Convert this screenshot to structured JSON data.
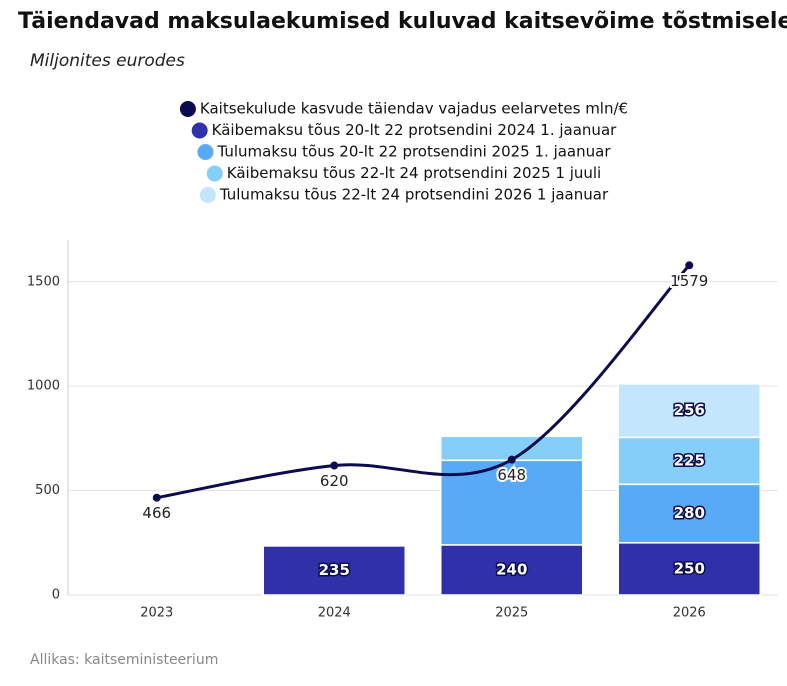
{
  "chart_data": {
    "type": "bar",
    "stacked": true,
    "title": "Täiendavad maksulaekumised kuluvad kaitsevõime tõstmisele",
    "subtitle": "Miljonites eurodes",
    "source": "Allikas: kaitseministeerium",
    "categories": [
      "2023",
      "2024",
      "2025",
      "2026"
    ],
    "ylim": [
      0,
      1700
    ],
    "yticks": [
      0,
      500,
      1000,
      1500
    ],
    "grid": true,
    "series": [
      {
        "name": "Kaitsekulude kasvude täiendav vajadus eelarvetes mln/€",
        "type": "line",
        "color": "#0b0b4f",
        "values": [
          466,
          620,
          648,
          1579
        ]
      },
      {
        "name": "Käibemaksu tõus 20-lt 22 protsendini 2024 1. jaanuar",
        "type": "bar",
        "color": "#3030a8",
        "values": [
          null,
          235,
          240,
          250
        ],
        "value_labels": [
          null,
          "235",
          "240",
          "250"
        ]
      },
      {
        "name": "Tulumaksu tõus 20-lt 22 protsendini 2025 1. jaanuar",
        "type": "bar",
        "color": "#58aaf7",
        "values": [
          null,
          null,
          405,
          280
        ],
        "value_labels": [
          null,
          null,
          null,
          "280"
        ]
      },
      {
        "name": "Käibemaksu tõus 22-lt  24 protsendini 2025 1 juuli",
        "type": "bar",
        "color": "#86cefa",
        "values": [
          null,
          null,
          115,
          225
        ],
        "value_labels": [
          null,
          null,
          null,
          "225"
        ]
      },
      {
        "name": "Tulumaksu tõus 22-lt 24 protsendini 2026 1 jaanuar",
        "type": "bar",
        "color": "#c3e6fc",
        "values": [
          null,
          null,
          null,
          256
        ],
        "value_labels": [
          null,
          null,
          null,
          "256"
        ]
      }
    ]
  }
}
